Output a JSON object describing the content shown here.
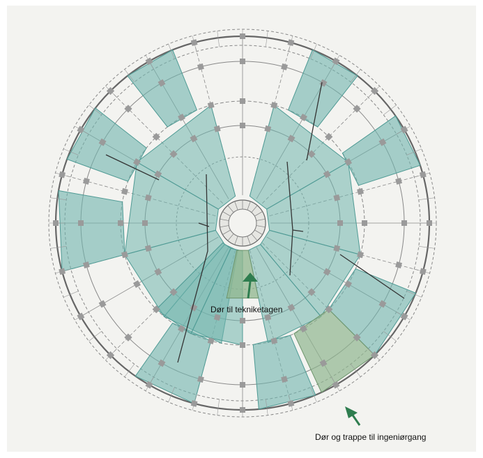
{
  "labels": {
    "door_tech": "Dør til tekniketagen",
    "door_stairs": "Dør og trappe til ingeniørgang"
  },
  "colors": {
    "teal_highlight": "#6fb4ad",
    "green_highlight": "#8fb58e",
    "arrow": "#2e7d4f",
    "paper": "#f1f1ee",
    "ink": "#5a5a5a"
  },
  "icons": [
    "arrow-up-icon",
    "arrow-up-left-icon"
  ]
}
